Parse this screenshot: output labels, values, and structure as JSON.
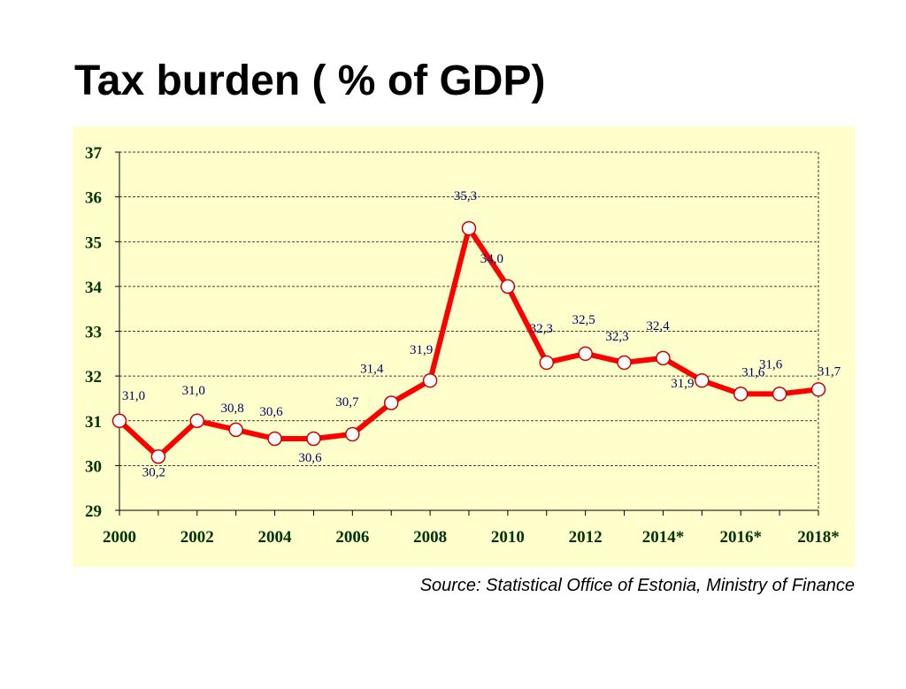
{
  "slide": {
    "title": "Tax burden ( % of GDP)",
    "source": "Source: Statistical Office of Estonia, Ministry of Finance"
  },
  "colors": {
    "panel_background": "#ffffcc",
    "line": "#ff0000",
    "marker_fill": "#ffffff",
    "marker_stroke": "#cc0000",
    "axis_label": "#003300",
    "data_label": "#000066"
  },
  "chart_data": {
    "type": "line",
    "x": [
      "2000",
      "2001",
      "2002",
      "2003",
      "2004",
      "2005",
      "2006",
      "2007",
      "2008",
      "2009",
      "2010",
      "2011",
      "2012",
      "2013",
      "2014*",
      "2015*",
      "2016*",
      "2017*",
      "2018*"
    ],
    "x_tick_labels": [
      "2000",
      "",
      "2002",
      "",
      "2004",
      "",
      "2006",
      "",
      "2008",
      "",
      "2010",
      "",
      "2012",
      "",
      "2014*",
      "",
      "2016*",
      "",
      "2018*"
    ],
    "series": [
      {
        "values": [
          31.0,
          30.2,
          31.0,
          30.8,
          30.6,
          30.6,
          30.7,
          31.4,
          31.9,
          35.3,
          34.0,
          32.3,
          32.5,
          32.3,
          32.4,
          31.9,
          31.6,
          31.6,
          31.7
        ],
        "data_labels": [
          "31,0",
          "30,2",
          "31,0",
          "30,8",
          "30,6",
          "30,6",
          "30,7",
          "31,4",
          "31,9",
          "35,3",
          "34,0",
          "32,3",
          "32,5",
          "32,3",
          "32,4",
          "31,9",
          "31,6",
          "31,6",
          "31,7"
        ]
      }
    ],
    "ylim": [
      29,
      37
    ],
    "y_ticks": [
      29,
      30,
      31,
      32,
      33,
      34,
      35,
      36,
      37
    ],
    "grid": true,
    "legend": "none",
    "title": "",
    "xlabel": "",
    "ylabel": ""
  }
}
